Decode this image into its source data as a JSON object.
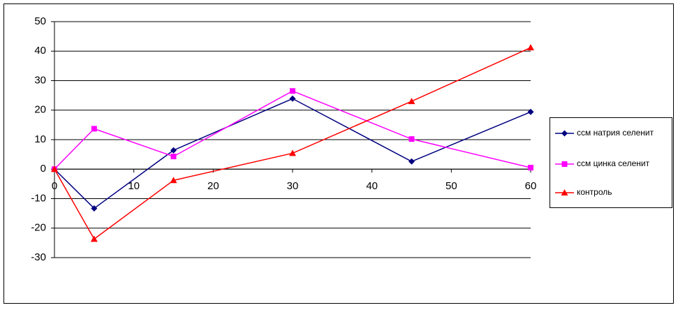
{
  "chart_data": {
    "type": "line",
    "x": [
      0,
      5,
      15,
      30,
      45,
      60
    ],
    "series": [
      {
        "name": "ссм натрия селенит",
        "color": "#000080",
        "marker": "diamond",
        "values": [
          0,
          -13.3,
          6.4,
          23.9,
          2.6,
          19.4
        ]
      },
      {
        "name": "ссм цинка селенит",
        "color": "#ff00ff",
        "marker": "square",
        "values": [
          0,
          13.7,
          4.3,
          26.5,
          10.2,
          0.5
        ]
      },
      {
        "name": "контроль",
        "color": "#ff0000",
        "marker": "triangle",
        "values": [
          0,
          -23.7,
          -3.8,
          5.4,
          23,
          41.2
        ]
      }
    ],
    "xlim": [
      0,
      60
    ],
    "xticks": [
      0,
      10,
      20,
      30,
      40,
      50,
      60
    ],
    "ylim": [
      -30,
      50
    ],
    "yticks": [
      -30,
      -20,
      -10,
      0,
      10,
      20,
      30,
      40,
      50
    ],
    "grid": true,
    "legend": "right"
  }
}
